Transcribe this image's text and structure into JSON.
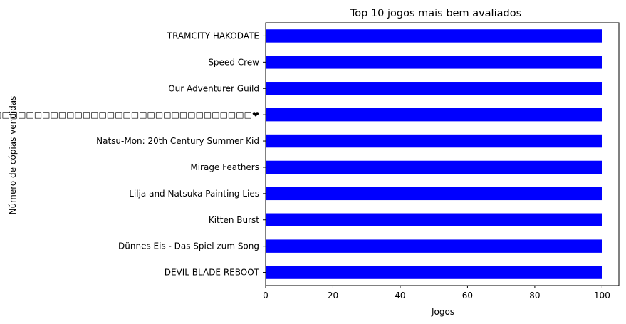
{
  "chart_data": {
    "type": "bar",
    "orientation": "horizontal",
    "title": "Top 10 jogos mais bem avaliados",
    "xlabel": "Jogos",
    "ylabel": "Número de cópias vendidas",
    "categories": [
      "TRAMCITY HAKODATE",
      "Speed Crew",
      "Our Adventurer Guild",
      "Oji-Mama/□□□□□□□□□□□□□□□□□□□□□□□□□□□□□□□□□□□□□□□□❤",
      "Natsu-Mon: 20th Century Summer Kid",
      "Mirage Feathers",
      "Lilja and Natsuka Painting Lies",
      "Kitten Burst",
      "Dünnes Eis - Das Spiel zum Song",
      "DEVIL BLADE REBOOT"
    ],
    "values": [
      100,
      100,
      100,
      100,
      100,
      100,
      100,
      100,
      100,
      100
    ],
    "xlim": [
      0,
      105
    ],
    "xticks": [
      0,
      20,
      40,
      60,
      80,
      100
    ],
    "bar_color": "#0000ff",
    "grid": false,
    "legend": "none"
  }
}
